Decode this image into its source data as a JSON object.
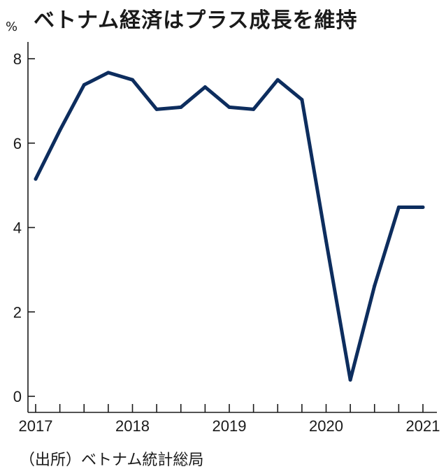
{
  "title": "ベトナム経済はプラス成長を維持",
  "unit": "%",
  "source": "（出所）ベトナム統計総局",
  "chart_data": {
    "type": "line",
    "title": "ベトナム経済はプラス成長を維持",
    "ylabel": "%",
    "ylim": [
      0,
      8
    ],
    "yticks": [
      0,
      2,
      4,
      6,
      8
    ],
    "xtick_labels": [
      "2017",
      "2018",
      "2019",
      "2020",
      "2021"
    ],
    "grid": false,
    "line_color": "#0d2d5e",
    "series": [
      {
        "values": [
          5.15,
          6.3,
          7.38,
          7.67,
          7.5,
          6.8,
          6.85,
          7.33,
          6.85,
          6.8,
          7.5,
          7.03,
          3.68,
          0.39,
          2.62,
          4.48,
          4.48
        ]
      }
    ]
  }
}
